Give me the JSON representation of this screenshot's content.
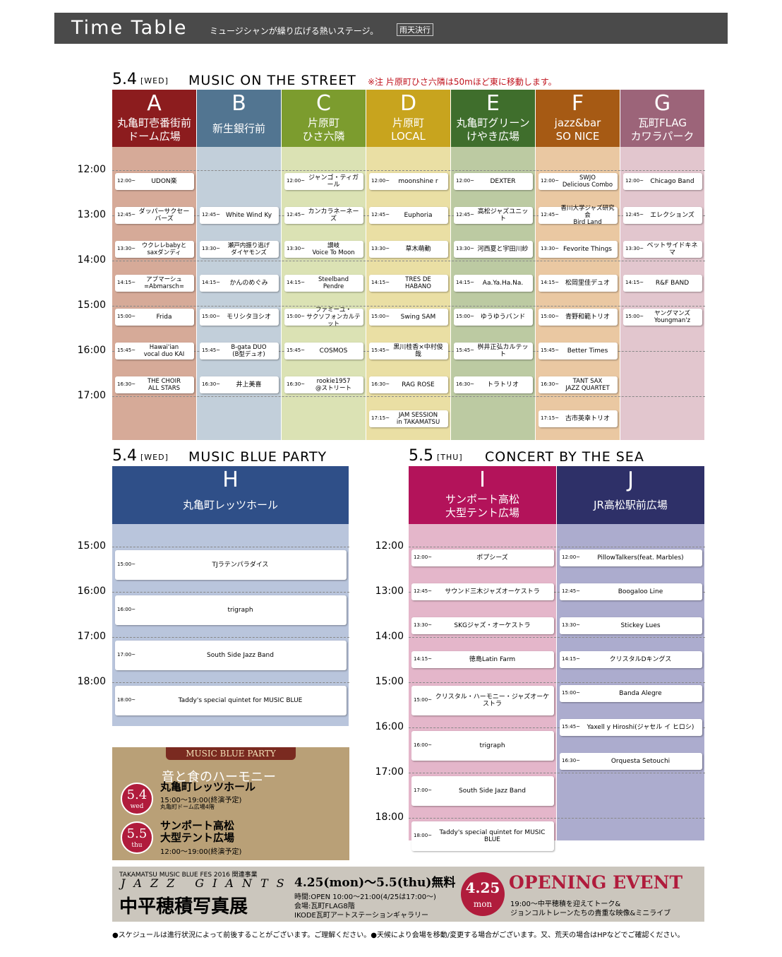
{
  "header": {
    "title": "Time Table",
    "subtitle": "ミュージシャンが繰り広げる熱いステージ。",
    "badge": "雨天決行"
  },
  "sections": [
    {
      "date": "5.4",
      "day": "[WED]",
      "title": "MUSIC ON THE STREET",
      "note": "※注 片原町ひさ六隣は50mほど東に移動します。",
      "times": [
        "12:00",
        "13:00",
        "14:00",
        "15:00",
        "16:00",
        "17:00"
      ],
      "venues": [
        {
          "letter": "A",
          "name": "丸亀町壱番街前\nドーム広場",
          "header_color": "#8c1c1e",
          "body_color": "#d6aa98",
          "slots": [
            {
              "time": "12:00~",
              "act": "UDON楽"
            },
            {
              "time": "12:45~",
              "act": "ダッパーサクセーバーズ"
            },
            {
              "time": "13:30~",
              "act": "ウクレレbabyと\nsaxダンディ"
            },
            {
              "time": "14:15~",
              "act": "アブマーシュ\n=Abmarsch="
            },
            {
              "time": "15:00~",
              "act": "Frida"
            },
            {
              "time": "15:45~",
              "act": "Hawai'ian\nvocal duo KAI"
            },
            {
              "time": "16:30~",
              "act": "THE CHOIR\nALL STARS"
            }
          ]
        },
        {
          "letter": "B",
          "name": "新生銀行前",
          "header_color": "#527591",
          "body_color": "#c2cfda",
          "slots": [
            {
              "time": "12:45~",
              "act": "White Wind Ky"
            },
            {
              "time": "13:30~",
              "act": "瀬戸内振り逃げ\nダイヤモンズ"
            },
            {
              "time": "14:15~",
              "act": "かんのめぐみ"
            },
            {
              "time": "15:00~",
              "act": "モリシタヨシオ"
            },
            {
              "time": "15:45~",
              "act": "B-gata DUO\n(B型デュオ)"
            },
            {
              "time": "16:30~",
              "act": "井上美喜"
            }
          ]
        },
        {
          "letter": "C",
          "name": "片原町\nひさ六隣",
          "header_color": "#7c9c2e",
          "body_color": "#dbe2b4",
          "slots": [
            {
              "time": "12:00~",
              "act": "ジャンゴ・ティガール"
            },
            {
              "time": "12:45~",
              "act": "カンカラネーネーズ"
            },
            {
              "time": "13:30~",
              "act": "讃岐\nVoice To Moon"
            },
            {
              "time": "14:15~",
              "act": "Steelband\nPendre"
            },
            {
              "time": "15:00~",
              "act": "ファミーユ・\nサクソフォンカルテット"
            },
            {
              "time": "15:45~",
              "act": "COSMOS"
            },
            {
              "time": "16:30~",
              "act": "rookie1957\n@ストリート"
            }
          ]
        },
        {
          "letter": "D",
          "name": "片原町\nLOCAL",
          "header_color": "#c8a41e",
          "body_color": "#eadfa4",
          "slots": [
            {
              "time": "12:00~",
              "act": "moonshine r"
            },
            {
              "time": "12:45~",
              "act": "Euphoria"
            },
            {
              "time": "13:30~",
              "act": "草木萌動"
            },
            {
              "time": "14:15~",
              "act": "TRES DE\nHABANO"
            },
            {
              "time": "15:00~",
              "act": "Swing SAM"
            },
            {
              "time": "15:45~",
              "act": "黒川桂香×中村俊哉"
            },
            {
              "time": "16:30~",
              "act": "RAG ROSE"
            },
            {
              "time": "17:15~",
              "act": "JAM SESSION\nin TAKAMATSU"
            }
          ]
        },
        {
          "letter": "E",
          "name": "丸亀町グリーン\nけやき広場",
          "header_color": "#3f6e2c",
          "body_color": "#bccaa2",
          "slots": [
            {
              "time": "12:00~",
              "act": "DEXTER"
            },
            {
              "time": "12:45~",
              "act": "高松ジャズユニット"
            },
            {
              "time": "13:30~",
              "act": "河西夏と宇田川紗"
            },
            {
              "time": "14:15~",
              "act": "Aa.Ya.Ha.Na."
            },
            {
              "time": "15:00~",
              "act": "ゆうゆうバンド"
            },
            {
              "time": "15:45~",
              "act": "桝井正弘カルテット"
            },
            {
              "time": "16:30~",
              "act": "トラトリオ"
            }
          ]
        },
        {
          "letter": "F",
          "name": "jazz&bar\nSO NICE",
          "header_color": "#a65a14",
          "body_color": "#eac8a2",
          "slots": [
            {
              "time": "12:00~",
              "act": "SWJO\nDelicious Combo"
            },
            {
              "time": "12:45~",
              "act": "香川大学ジャズ研究会\nBird Land"
            },
            {
              "time": "13:30~",
              "act": "Fevorite Things"
            },
            {
              "time": "14:15~",
              "act": "松岡里佳デュオ"
            },
            {
              "time": "15:00~",
              "act": "青野和範トリオ"
            },
            {
              "time": "15:45~",
              "act": "Better Times"
            },
            {
              "time": "16:30~",
              "act": "TANT SAX\nJAZZ QUARTET"
            },
            {
              "time": "17:15~",
              "act": "古市英幸トリオ"
            }
          ]
        },
        {
          "letter": "G",
          "name": "瓦町FLAG\nカワラパーク",
          "header_color": "#9c6479",
          "body_color": "#e2c6ce",
          "slots": [
            {
              "time": "12:00~",
              "act": "Chicago Band"
            },
            {
              "time": "12:45~",
              "act": "エレクションズ"
            },
            {
              "time": "13:30~",
              "act": "ベットサイドキネマ"
            },
            {
              "time": "14:15~",
              "act": "R&F BAND"
            },
            {
              "time": "15:00~",
              "act": "ヤングマンズ\nYoungman'z"
            }
          ]
        }
      ]
    },
    {
      "date": "5.4",
      "day": "[WED]",
      "title": "MUSIC BLUE PARTY",
      "times": [
        "15:00",
        "16:00",
        "17:00",
        "18:00"
      ],
      "venues": [
        {
          "letter": "H",
          "name": "丸亀町レッツホール",
          "header_color": "#2f4f88",
          "body_color": "#b9c5dc",
          "slots": [
            {
              "time": "15:00~",
              "act": "TJラテンパラダイス"
            },
            {
              "time": "16:00~",
              "act": "trigraph"
            },
            {
              "time": "17:00~",
              "act": "South Side Jazz Band"
            },
            {
              "time": "18:00~",
              "act": "Taddy's special quintet for MUSIC BLUE"
            }
          ]
        }
      ]
    },
    {
      "date": "5.5",
      "day": "[THU]",
      "title": "CONCERT BY THE SEA",
      "times": [
        "12:00",
        "13:00",
        "14:00",
        "15:00",
        "16:00",
        "17:00",
        "18:00"
      ],
      "venues": [
        {
          "letter": "I",
          "name": "サンポート高松\n大型テント広場",
          "header_color": "#b3135a",
          "body_color": "#e4b6ca",
          "slots": [
            {
              "time": "12:00~",
              "act": "ポプシーズ"
            },
            {
              "time": "12:45~",
              "act": "サウンド三木ジャズオーケストラ"
            },
            {
              "time": "13:30~",
              "act": "SKGジャズ・オーケストラ"
            },
            {
              "time": "14:15~",
              "act": "徳島Latin Farm"
            },
            {
              "time": "15:00~",
              "act": "クリスタル・ハーモニー・ジャズオーケストラ"
            },
            {
              "time": "16:00~",
              "act": "trigraph"
            },
            {
              "time": "17:00~",
              "act": "South Side Jazz Band"
            },
            {
              "time": "18:00~",
              "act": "Taddy's special quintet for MUSIC BLUE"
            }
          ]
        },
        {
          "letter": "J",
          "name": "JR高松駅前広場",
          "header_color": "#2e3068",
          "body_color": "#acacce",
          "slots": [
            {
              "time": "12:00~",
              "act": "PillowTalkers(feat. Marbles)"
            },
            {
              "time": "12:45~",
              "act": "Boogaloo Line"
            },
            {
              "time": "13:30~",
              "act": "Stickey Lues"
            },
            {
              "time": "14:15~",
              "act": "クリスタルDキングス"
            },
            {
              "time": "15:00~",
              "act": "Banda Alegre"
            },
            {
              "time": "15:45~",
              "act": "Yaxell y Hiroshi(ジャセル イ ヒロシ)"
            },
            {
              "time": "16:30~",
              "act": "Orquesta Setouchi"
            }
          ]
        }
      ]
    }
  ],
  "promo": {
    "banner": "MUSIC BLUE PARTY",
    "headline": "音と食のハーモニー",
    "entries": [
      {
        "date": "5.4",
        "day": "wed",
        "venue": "丸亀町レッツホール",
        "time": "15:00～19:00(終演予定)",
        "note": "丸亀町ドーム広場4階"
      },
      {
        "date": "5.5",
        "day": "thu",
        "venue": "サンポート高松\n大型テント広場",
        "time": "12:00～19:00(終演予定)"
      }
    ]
  },
  "exhibit": {
    "kicker": "TAKAMATSU MUSIC BLUE FES 2016 関連事業",
    "name": "JAZZ GIANTS",
    "title": "中平穂積写真展",
    "period": "4.25(mon)～5.5(thu)無料",
    "hours": "時間:OPEN 10:00～21:00(4/25は17:00～)",
    "place": "会場:瓦町FLAG8階",
    "gallery": "IKODE瓦町アートステーションギャラリー",
    "event_date": "4.25",
    "event_day": "mon",
    "event_title": "OPENING EVENT",
    "event_line1": "19:00～中平穂積を迎えてトーク&",
    "event_line2": "ジョンコルトレーンたちの貴重な映像&ミニライブ"
  },
  "footer": "●スケジュールは進行状況によって前後することがございます。ご理解ください。●天候により会場を移動/変更する場合がございます。又、荒天の場合はHPなどでご確認ください。"
}
